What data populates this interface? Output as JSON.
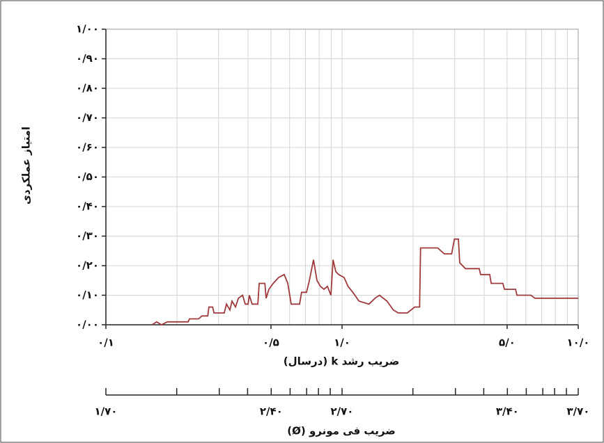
{
  "chart_data": {
    "type": "line",
    "log_x": true,
    "grid": true,
    "xlabel": "ضریب رشد k (درسال)",
    "ylabel": "امتیاز عملکردی",
    "x2label": "ضریب فی مونرو (Ø)",
    "xlim": [
      0.1,
      10
    ],
    "xticks": [
      {
        "value": 0.1,
        "label": "۰/۱"
      },
      {
        "value": 0.5,
        "label": "۰/۵"
      },
      {
        "value": 1,
        "label": "۱/۰"
      },
      {
        "value": 5,
        "label": "۵/۰"
      },
      {
        "value": 10,
        "label": "۱۰/۰"
      }
    ],
    "xminor": [
      0.2,
      0.3,
      0.4,
      0.6,
      0.7,
      0.8,
      0.9,
      2,
      3,
      4,
      6,
      7,
      8,
      9
    ],
    "x2lim": [
      1.7,
      3.7
    ],
    "x2ticks": [
      {
        "value": 1.7,
        "label": "۱/۷۰"
      },
      {
        "value": 2.4,
        "label": "۲/۴۰"
      },
      {
        "value": 2.7,
        "label": "۲/۷۰"
      },
      {
        "value": 3.4,
        "label": "۳/۴۰"
      },
      {
        "value": 3.7,
        "label": "۳/۷۰"
      }
    ],
    "x2minor": [
      2.0,
      2.18,
      2.3,
      2.48,
      2.55,
      2.6,
      2.65,
      3.0,
      3.18,
      3.3,
      3.48,
      3.55,
      3.6,
      3.65
    ],
    "ylim": [
      0,
      1
    ],
    "yticks": [
      {
        "value": 0,
        "label": "۰/۰۰"
      },
      {
        "value": 0.1,
        "label": "۰/۱۰"
      },
      {
        "value": 0.2,
        "label": "۰/۲۰"
      },
      {
        "value": 0.3,
        "label": "۰/۳۰"
      },
      {
        "value": 0.4,
        "label": "۰/۴۰"
      },
      {
        "value": 0.5,
        "label": "۰/۵۰"
      },
      {
        "value": 0.6,
        "label": "۰/۶۰"
      },
      {
        "value": 0.7,
        "label": "۰/۷۰"
      },
      {
        "value": 0.8,
        "label": "۰/۸۰"
      },
      {
        "value": 0.9,
        "label": "۰/۹۰"
      },
      {
        "value": 1,
        "label": "۱/۰۰"
      }
    ],
    "color": "#a0393b",
    "x": [
      0.157,
      0.164,
      0.172,
      0.182,
      0.223,
      0.226,
      0.247,
      0.255,
      0.27,
      0.273,
      0.283,
      0.287,
      0.317,
      0.324,
      0.335,
      0.342,
      0.354,
      0.364,
      0.379,
      0.389,
      0.4,
      0.405,
      0.416,
      0.44,
      0.446,
      0.471,
      0.477,
      0.49,
      0.511,
      0.539,
      0.569,
      0.589,
      0.609,
      0.661,
      0.674,
      0.707,
      0.727,
      0.757,
      0.783,
      0.81,
      0.838,
      0.867,
      0.897,
      0.916,
      0.941,
      0.967,
      1.02,
      1.06,
      1.11,
      1.18,
      1.3,
      1.38,
      1.44,
      1.55,
      1.65,
      1.73,
      1.89,
      2.03,
      2.13,
      2.15,
      2.54,
      2.71,
      2.91,
      2.99,
      3.11,
      3.15,
      3.33,
      3.81,
      3.86,
      4.22,
      4.28,
      4.8,
      4.87,
      5.43,
      5.5,
      6.3,
      6.56,
      10.0
    ],
    "values": [
      0,
      0.01,
      0,
      0.01,
      0.01,
      0.02,
      0.02,
      0.03,
      0.03,
      0.06,
      0.06,
      0.04,
      0.04,
      0.07,
      0.05,
      0.08,
      0.06,
      0.09,
      0.1,
      0.07,
      0.07,
      0.1,
      0.07,
      0.07,
      0.14,
      0.14,
      0.09,
      0.12,
      0.14,
      0.16,
      0.17,
      0.14,
      0.07,
      0.07,
      0.11,
      0.11,
      0.15,
      0.22,
      0.15,
      0.13,
      0.12,
      0.13,
      0.1,
      0.22,
      0.18,
      0.17,
      0.16,
      0.13,
      0.11,
      0.08,
      0.07,
      0.09,
      0.1,
      0.08,
      0.05,
      0.04,
      0.04,
      0.06,
      0.06,
      0.26,
      0.26,
      0.24,
      0.24,
      0.29,
      0.29,
      0.21,
      0.19,
      0.19,
      0.17,
      0.17,
      0.14,
      0.14,
      0.12,
      0.12,
      0.1,
      0.1,
      0.09,
      0.09
    ]
  }
}
